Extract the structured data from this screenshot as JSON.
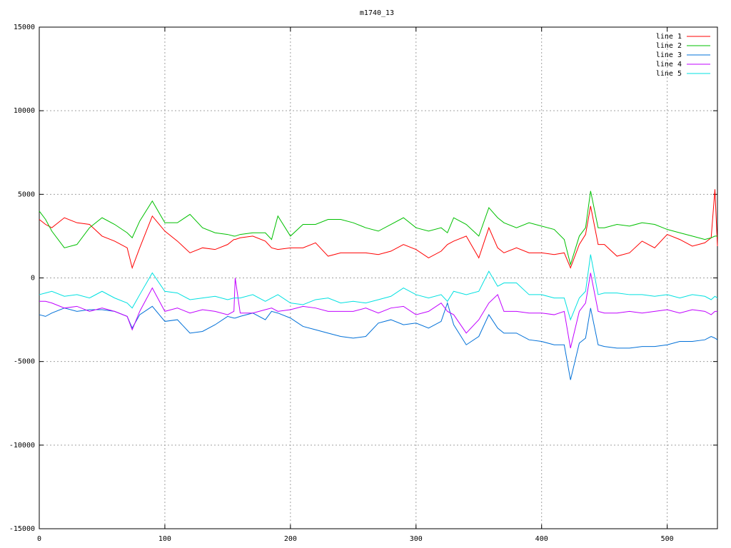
{
  "chart_data": {
    "type": "line",
    "title": "m1740_13",
    "x": [
      0,
      5,
      10,
      20,
      30,
      40,
      50,
      60,
      70,
      74,
      80,
      90,
      100,
      110,
      120,
      130,
      140,
      150,
      155,
      156,
      160,
      170,
      180,
      185,
      190,
      200,
      210,
      220,
      230,
      240,
      250,
      260,
      270,
      280,
      290,
      300,
      310,
      320,
      325,
      330,
      340,
      350,
      358,
      365,
      370,
      380,
      390,
      400,
      410,
      418,
      423,
      430,
      435,
      439,
      445,
      450,
      460,
      470,
      480,
      490,
      500,
      510,
      520,
      530,
      535,
      538,
      540
    ],
    "series": [
      {
        "name": "line 1",
        "color": "#ff0000",
        "values": [
          3500,
          3200,
          3000,
          3600,
          3300,
          3200,
          2500,
          2200,
          1800,
          600,
          1800,
          3700,
          2800,
          2200,
          1500,
          1800,
          1700,
          2000,
          2300,
          2300,
          2400,
          2500,
          2200,
          1800,
          1700,
          1800,
          1800,
          2100,
          1300,
          1500,
          1500,
          1500,
          1400,
          1600,
          2000,
          1700,
          1200,
          1600,
          2000,
          2200,
          2500,
          1200,
          3000,
          1800,
          1500,
          1800,
          1500,
          1500,
          1400,
          1500,
          600,
          2000,
          2600,
          4300,
          2000,
          2000,
          1300,
          1500,
          2200,
          1800,
          2600,
          2300,
          1900,
          2100,
          2400,
          5300,
          1900
        ]
      },
      {
        "name": "line 2",
        "color": "#00c000",
        "values": [
          4000,
          3500,
          2800,
          1800,
          2000,
          3000,
          3600,
          3200,
          2700,
          2400,
          3400,
          4600,
          3300,
          3300,
          3800,
          3000,
          2700,
          2600,
          2500,
          2500,
          2600,
          2700,
          2700,
          2300,
          3700,
          2500,
          3200,
          3200,
          3500,
          3500,
          3300,
          3000,
          2800,
          3200,
          3600,
          3000,
          2800,
          3000,
          2700,
          3600,
          3200,
          2500,
          4200,
          3600,
          3300,
          3000,
          3300,
          3100,
          2900,
          2300,
          800,
          2500,
          3000,
          5200,
          3000,
          3000,
          3200,
          3100,
          3300,
          3200,
          2900,
          2700,
          2500,
          2300,
          2400,
          2500,
          2500
        ]
      },
      {
        "name": "line 3",
        "color": "#0070d8",
        "values": [
          -2200,
          -2300,
          -2100,
          -1800,
          -2000,
          -1900,
          -1900,
          -2000,
          -2300,
          -3000,
          -2200,
          -1700,
          -2600,
          -2500,
          -3300,
          -3200,
          -2800,
          -2300,
          -2400,
          -2400,
          -2300,
          -2100,
          -2500,
          -2000,
          -2100,
          -2400,
          -2900,
          -3100,
          -3300,
          -3500,
          -3600,
          -3500,
          -2700,
          -2500,
          -2800,
          -2700,
          -3000,
          -2600,
          -1500,
          -2800,
          -4000,
          -3500,
          -2200,
          -3000,
          -3300,
          -3300,
          -3700,
          -3800,
          -4000,
          -4000,
          -6100,
          -3900,
          -3600,
          -1800,
          -4000,
          -4100,
          -4200,
          -4200,
          -4100,
          -4100,
          -4000,
          -3800,
          -3800,
          -3700,
          -3500,
          -3600,
          -3700
        ]
      },
      {
        "name": "line 4",
        "color": "#c000ff",
        "values": [
          -1400,
          -1400,
          -1500,
          -1800,
          -1700,
          -2000,
          -1800,
          -2000,
          -2300,
          -3100,
          -2000,
          -600,
          -2000,
          -1800,
          -2100,
          -1900,
          -2000,
          -2200,
          -2000,
          0,
          -2100,
          -2100,
          -1900,
          -1800,
          -2000,
          -1900,
          -1700,
          -1800,
          -2000,
          -2000,
          -2000,
          -1800,
          -2100,
          -1800,
          -1700,
          -2200,
          -2000,
          -1500,
          -2000,
          -2200,
          -3300,
          -2500,
          -1500,
          -1000,
          -2000,
          -2000,
          -2100,
          -2100,
          -2200,
          -2000,
          -4200,
          -2000,
          -1500,
          300,
          -2000,
          -2100,
          -2100,
          -2000,
          -2100,
          -2000,
          -1900,
          -2100,
          -1900,
          -2000,
          -2200,
          -2000,
          -2000
        ]
      },
      {
        "name": "line 5",
        "color": "#00e0e0",
        "values": [
          -1000,
          -900,
          -800,
          -1100,
          -1000,
          -1200,
          -800,
          -1200,
          -1500,
          -1800,
          -1000,
          300,
          -800,
          -900,
          -1300,
          -1200,
          -1100,
          -1300,
          -1200,
          -1200,
          -1200,
          -1000,
          -1400,
          -1200,
          -1000,
          -1500,
          -1600,
          -1300,
          -1200,
          -1500,
          -1400,
          -1500,
          -1300,
          -1100,
          -600,
          -1000,
          -1200,
          -1000,
          -1400,
          -800,
          -1000,
          -800,
          400,
          -500,
          -300,
          -300,
          -1000,
          -1000,
          -1200,
          -1200,
          -2500,
          -1200,
          -800,
          1400,
          -1000,
          -900,
          -900,
          -1000,
          -1000,
          -1100,
          -1000,
          -1200,
          -1000,
          -1100,
          -1300,
          -1100,
          -1200
        ]
      }
    ],
    "xlim": [
      0,
      540
    ],
    "ylim": [
      -15000,
      15000
    ],
    "xticks": [
      0,
      100,
      200,
      300,
      400,
      500
    ],
    "yticks": [
      -15000,
      -10000,
      -5000,
      0,
      5000,
      10000,
      15000
    ],
    "grid": true,
    "legend": "top-right"
  }
}
